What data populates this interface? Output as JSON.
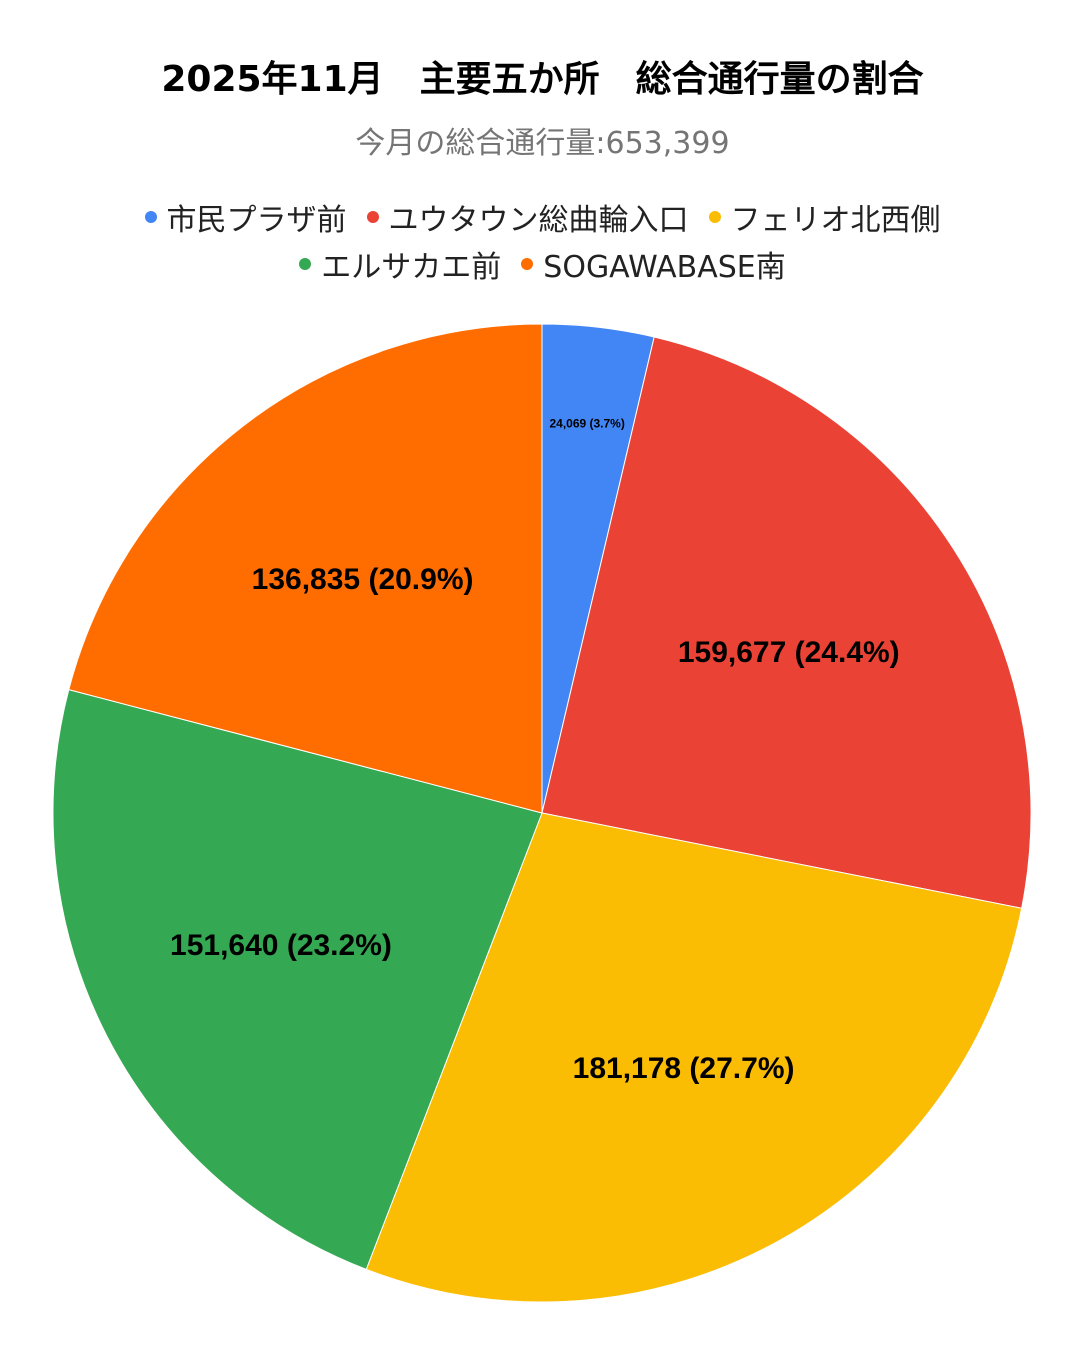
{
  "chart_data": {
    "type": "pie",
    "title": "2025年11月　主要五か所　総合通行量の割合",
    "subtitle": "今月の総合通行量:653,399",
    "legend_position": "top",
    "total": 653399,
    "slices": [
      {
        "name": "市民プラザ前",
        "value": 24069,
        "percent": 3.7,
        "label": "24,069 (3.7%)",
        "color": "#4285F4"
      },
      {
        "name": "ユウタウン総曲輪入口",
        "value": 159677,
        "percent": 24.4,
        "label": "159,677 (24.4%)",
        "color": "#EA4335"
      },
      {
        "name": "フェリオ北西側",
        "value": 181178,
        "percent": 27.7,
        "label": "181,178 (27.7%)",
        "color": "#FBBC04"
      },
      {
        "name": "エルサカエ前",
        "value": 151640,
        "percent": 23.2,
        "label": "151,640 (23.2%)",
        "color": "#34A853"
      },
      {
        "name": "SOGAWABASE南",
        "value": 136835,
        "percent": 20.9,
        "label": "136,835 (20.9%)",
        "color": "#FF6D01"
      }
    ]
  }
}
